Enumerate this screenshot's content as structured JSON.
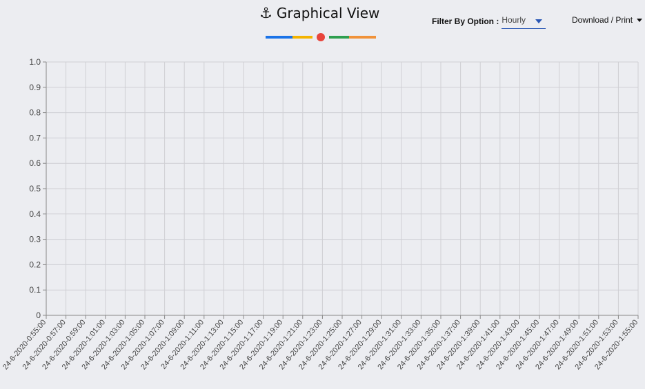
{
  "header": {
    "title": "Graphical View",
    "icon": "anchor-icon"
  },
  "legend": {
    "colors": [
      "#1a73e8",
      "#f4b400",
      "#e8453c",
      "#2e9f4f",
      "#f0923a"
    ]
  },
  "filter": {
    "label": "Filter By Option :",
    "value": "Hourly",
    "accent": "#2a57b5"
  },
  "download": {
    "label": "Download / Print"
  },
  "chart_data": {
    "type": "line",
    "title": "",
    "xlabel": "",
    "ylabel": "",
    "ylim": [
      0,
      1
    ],
    "yticks": [
      "0",
      "0.1",
      "0.2",
      "0.3",
      "0.4",
      "0.5",
      "0.6",
      "0.7",
      "0.8",
      "0.9",
      "1.0"
    ],
    "grid": true,
    "x": [
      "24-6-2020-0:55:00",
      "24-6-2020-0:57:00",
      "24-6-2020-0:59:00",
      "24-6-2020-1:01:00",
      "24-6-2020-1:03:00",
      "24-6-2020-1:05:00",
      "24-6-2020-1:07:00",
      "24-6-2020-1:09:00",
      "24-6-2020-1:11:00",
      "24-6-2020-1:13:00",
      "24-6-2020-1:15:00",
      "24-6-2020-1:17:00",
      "24-6-2020-1:19:00",
      "24-6-2020-1:21:00",
      "24-6-2020-1:23:00",
      "24-6-2020-1:25:00",
      "24-6-2020-1:27:00",
      "24-6-2020-1:29:00",
      "24-6-2020-1:31:00",
      "24-6-2020-1:33:00",
      "24-6-2020-1:35:00",
      "24-6-2020-1:37:00",
      "24-6-2020-1:39:00",
      "24-6-2020-1:41:00",
      "24-6-2020-1:43:00",
      "24-6-2020-1:45:00",
      "24-6-2020-1:47:00",
      "24-6-2020-1:49:00",
      "24-6-2020-1:51:00",
      "24-6-2020-1:53:00",
      "24-6-2020-1:55:00"
    ],
    "series": []
  }
}
